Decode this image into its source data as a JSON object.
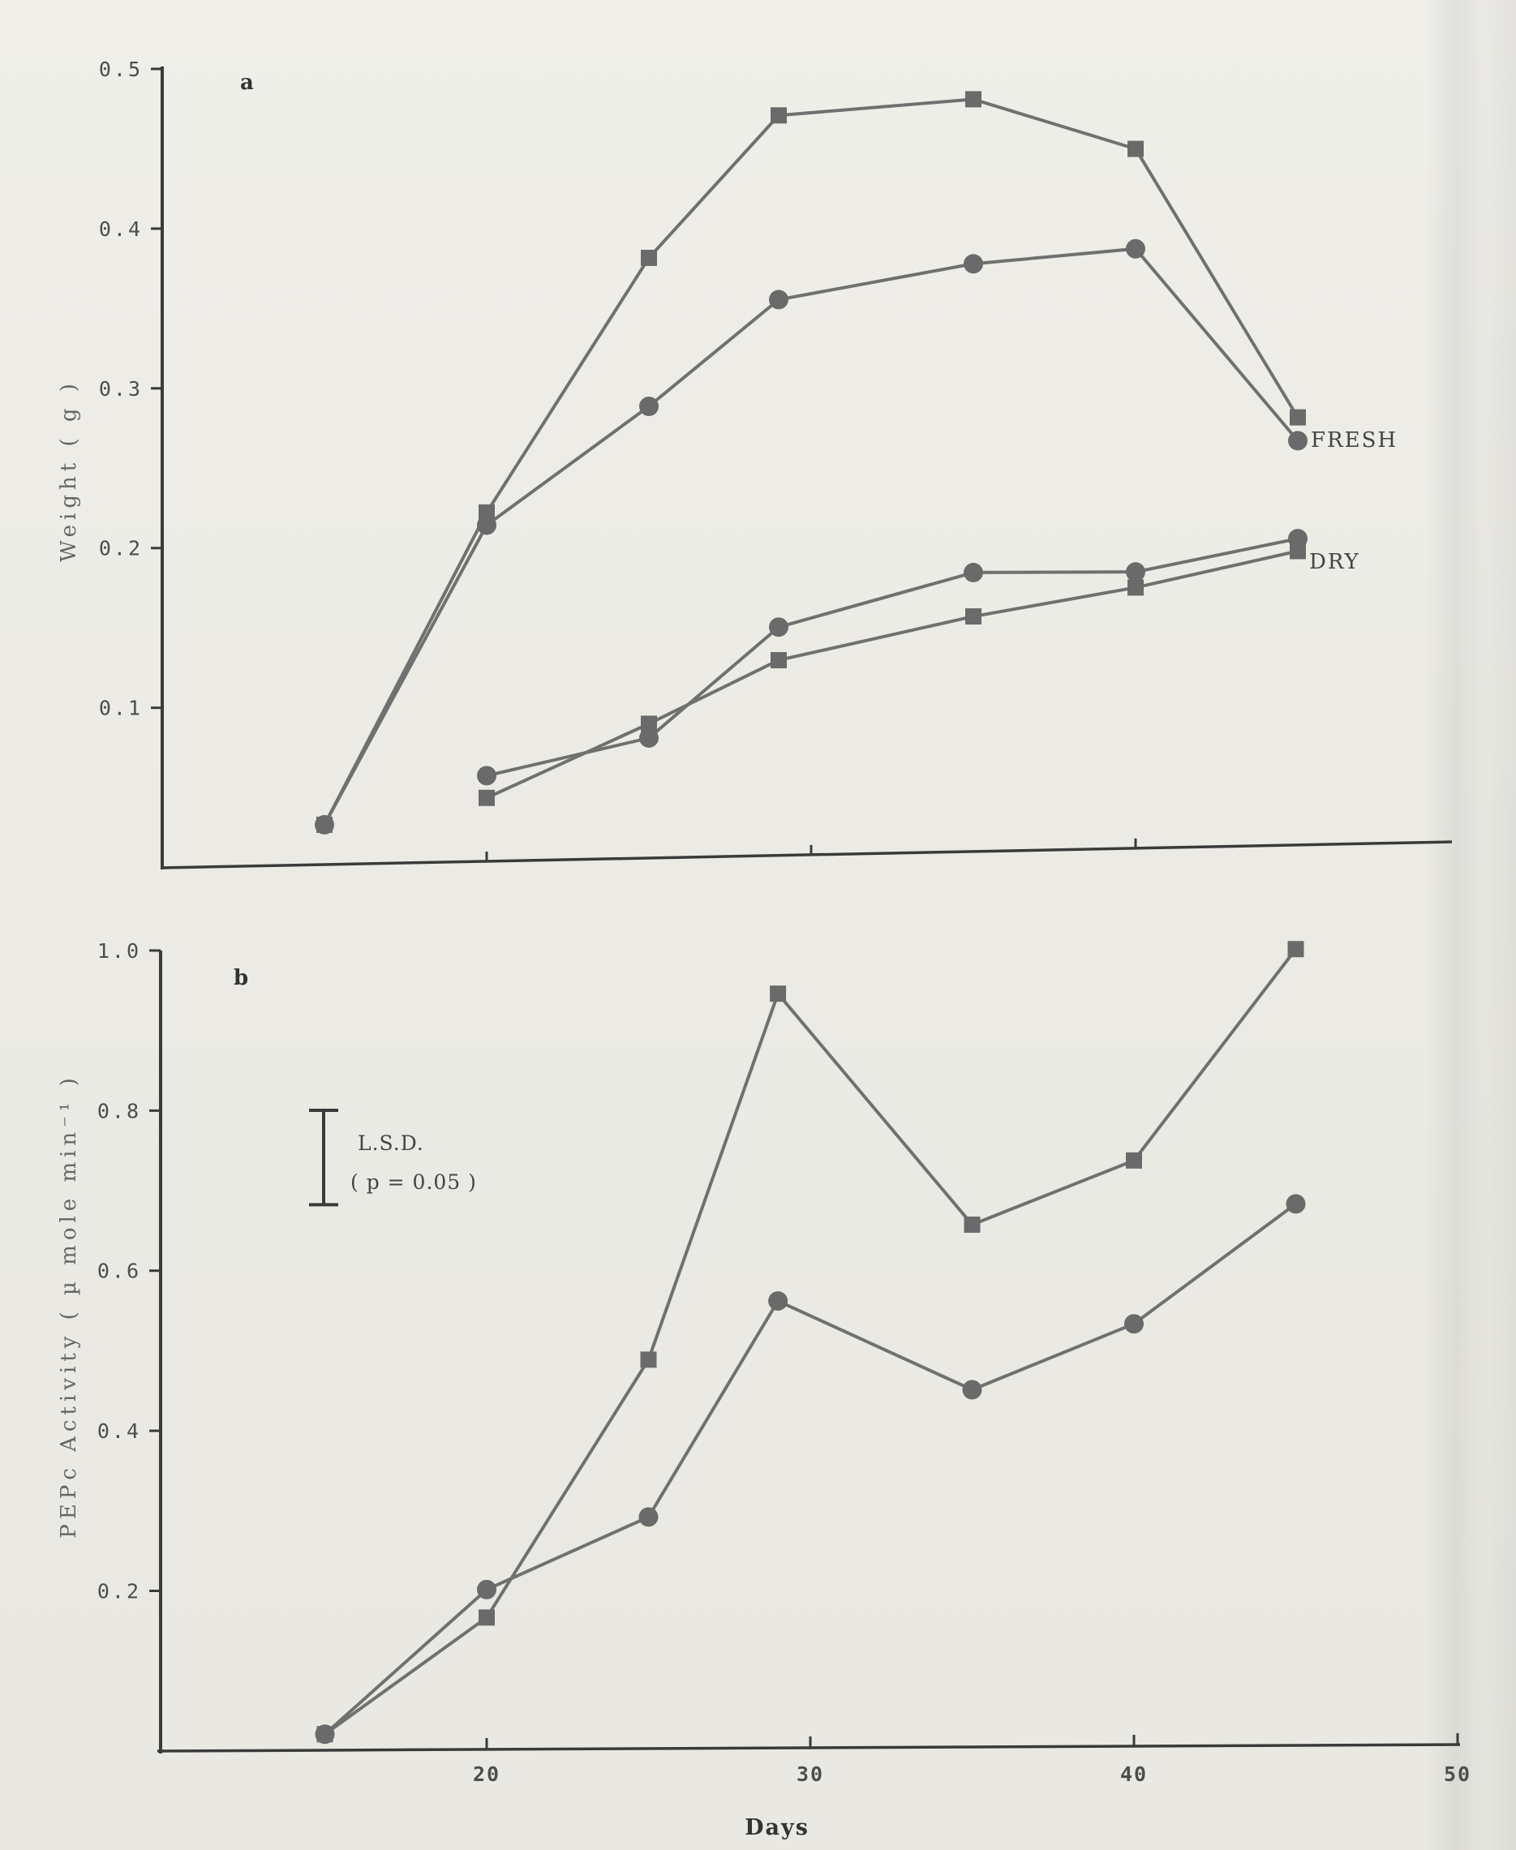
{
  "figure": {
    "xlabel": "Days",
    "x_ticks": [
      "20",
      "30",
      "40",
      "50"
    ]
  },
  "colors": {
    "line": "#707070",
    "marker": "#6a6a6a",
    "axis": "#3a3a3a"
  },
  "chart_data": [
    {
      "type": "line",
      "panel": "a",
      "panel_label": "a",
      "title": "",
      "xlabel": "Days",
      "ylabel": "Weight ( g )",
      "xlim": [
        10,
        50
      ],
      "ylim": [
        0,
        0.5
      ],
      "y_ticks": [
        "0.1",
        "0.2",
        "0.3",
        "0.4",
        "0.5"
      ],
      "annotations": [
        "FRESH",
        "DRY"
      ],
      "series": [
        {
          "marker": "square",
          "group": "FRESH",
          "x": [
            15,
            20,
            25,
            29,
            35,
            40,
            45
          ],
          "y": [
            0.025,
            0.22,
            0.38,
            0.47,
            0.48,
            0.448,
            0.275
          ]
        },
        {
          "marker": "circle",
          "group": "FRESH",
          "x": [
            15,
            20,
            25,
            29,
            35,
            40,
            45
          ],
          "y": [
            0.025,
            0.212,
            0.286,
            0.353,
            0.375,
            0.384,
            0.26
          ]
        },
        {
          "marker": "circle",
          "group": "DRY",
          "x": [
            20,
            25,
            29,
            35,
            40,
            45
          ],
          "y": [
            0.054,
            0.076,
            0.145,
            0.178,
            0.177,
            0.197
          ]
        },
        {
          "marker": "square",
          "group": "DRY",
          "x": [
            20,
            25,
            29,
            35,
            40,
            45
          ],
          "y": [
            0.04,
            0.085,
            0.124,
            0.15,
            0.167,
            0.189
          ]
        }
      ]
    },
    {
      "type": "line",
      "panel": "b",
      "panel_label": "b",
      "title": "",
      "xlabel": "Days",
      "ylabel": "PEPc  Activity ( µ mole min⁻¹ )",
      "xlim": [
        10,
        50
      ],
      "ylim": [
        0,
        1.0
      ],
      "y_ticks": [
        "0.2",
        "0.4",
        "0.6",
        "0.8",
        "1.0"
      ],
      "lsd": {
        "label": "L.S.D.",
        "sublabel": "( p = 0.05 )",
        "value": 0.118
      },
      "series": [
        {
          "marker": "square",
          "x": [
            15,
            20,
            25,
            29,
            35,
            40,
            45
          ],
          "y": [
            0.02,
            0.165,
            0.487,
            0.945,
            0.655,
            0.735,
            1.0
          ]
        },
        {
          "marker": "circle",
          "x": [
            15,
            20,
            25,
            29,
            35,
            40,
            45
          ],
          "y": [
            0.02,
            0.2,
            0.29,
            0.56,
            0.448,
            0.53,
            0.68
          ]
        }
      ]
    }
  ]
}
